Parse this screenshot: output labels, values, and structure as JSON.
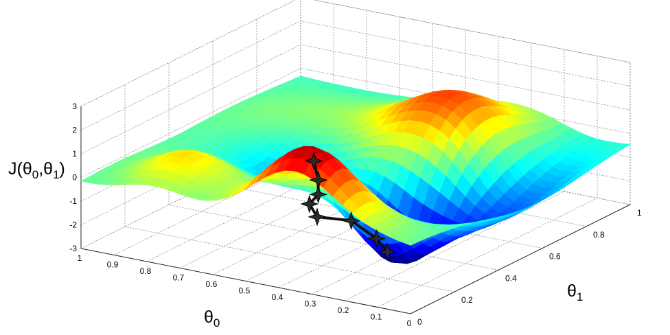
{
  "chart_data": {
    "type": "surface",
    "title": "",
    "xlabel_main": "θ",
    "xlabel_sub": "0",
    "ylabel_main": "θ",
    "ylabel_sub": "1",
    "zlabel": {
      "main": "J(θ",
      "sub1": "0",
      "mid": ",θ",
      "sub2": "1",
      "end": ")"
    },
    "x_ticks": [
      "1",
      "0.9",
      "0.8",
      "0.7",
      "0.6",
      "0.5",
      "0.4",
      "0.3",
      "0.2",
      "0.1",
      "0"
    ],
    "x_tick_values": [
      1,
      0.9,
      0.8,
      0.7,
      0.6,
      0.5,
      0.4,
      0.3,
      0.2,
      0.1,
      0
    ],
    "y_ticks": [
      "0",
      "0.2",
      "0.4",
      "0.6",
      "0.8",
      "1"
    ],
    "y_tick_values": [
      0,
      0.2,
      0.4,
      0.6,
      0.8,
      1
    ],
    "z_ticks": [
      "3",
      "2",
      "1",
      "0",
      "-1",
      "-2",
      "-3"
    ],
    "z_tick_values": [
      3,
      2,
      1,
      0,
      -1,
      -2,
      -3
    ],
    "xlim": [
      0,
      1
    ],
    "ylim": [
      0,
      1
    ],
    "zlim": [
      -3,
      3
    ],
    "grid": true,
    "colormap": [
      "#00008f",
      "#0000ff",
      "#0080ff",
      "#00ffff",
      "#80ff80",
      "#ffff00",
      "#ff8000",
      "#ff0000",
      "#800000"
    ],
    "descent_path": [
      {
        "x": 0.36,
        "y": 0.1,
        "z": 2.0
      },
      {
        "x": 0.36,
        "y": 0.12,
        "z": 1.1
      },
      {
        "x": 0.38,
        "y": 0.15,
        "z": 0.3
      },
      {
        "x": 0.44,
        "y": 0.2,
        "z": -0.5
      },
      {
        "x": 0.45,
        "y": 0.25,
        "z": -1.3
      },
      {
        "x": 0.38,
        "y": 0.3,
        "z": -1.5
      },
      {
        "x": 0.33,
        "y": 0.34,
        "z": -2.3
      },
      {
        "x": 0.31,
        "y": 0.36,
        "z": -2.9
      }
    ]
  }
}
